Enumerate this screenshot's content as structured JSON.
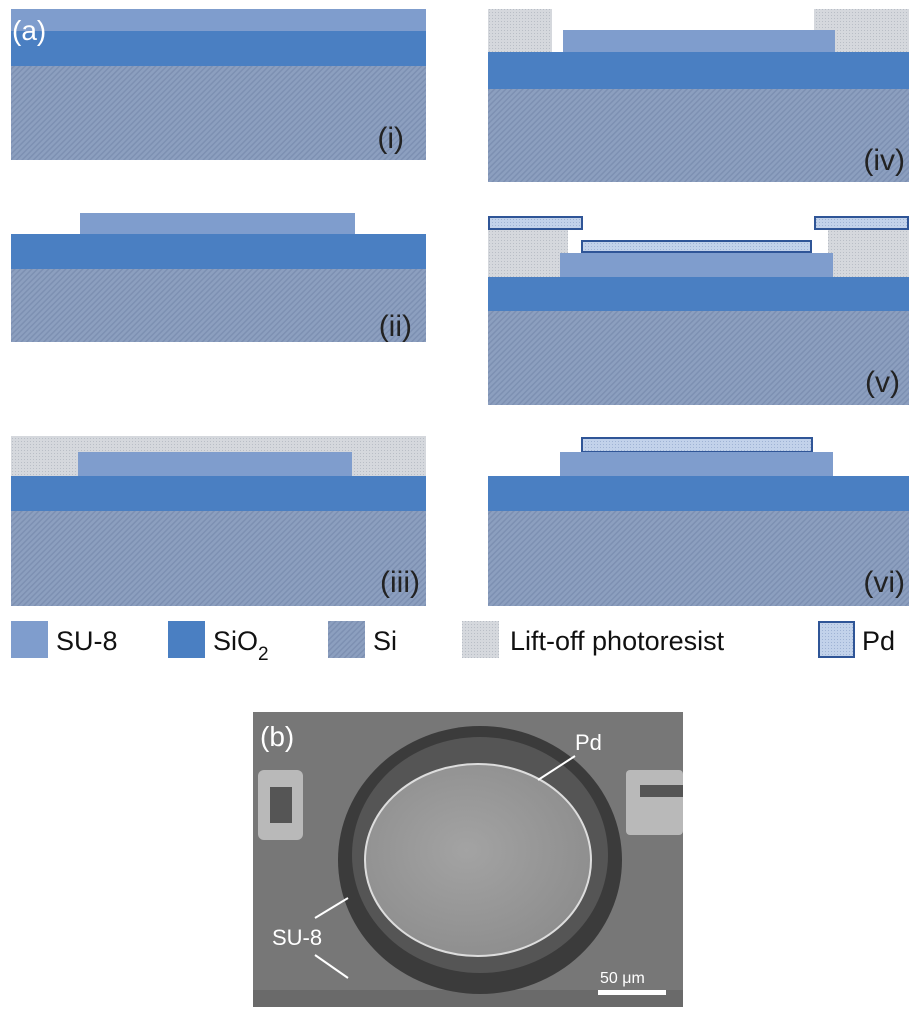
{
  "panel_a": {
    "label": "(a)",
    "steps": [
      "(i)",
      "(ii)",
      "(iii)",
      "(iv)",
      "(v)",
      "(vi)"
    ],
    "legend": [
      {
        "label": "SU-8"
      },
      {
        "label": "SiO",
        "subscript": "2"
      },
      {
        "label": "Si"
      },
      {
        "label": "Lift-off photoresist"
      },
      {
        "label": "Pd"
      }
    ]
  },
  "panel_b": {
    "label": "(b)",
    "annotations": [
      "Pd",
      "SU-8"
    ],
    "scale_bar": "50 μm"
  }
}
